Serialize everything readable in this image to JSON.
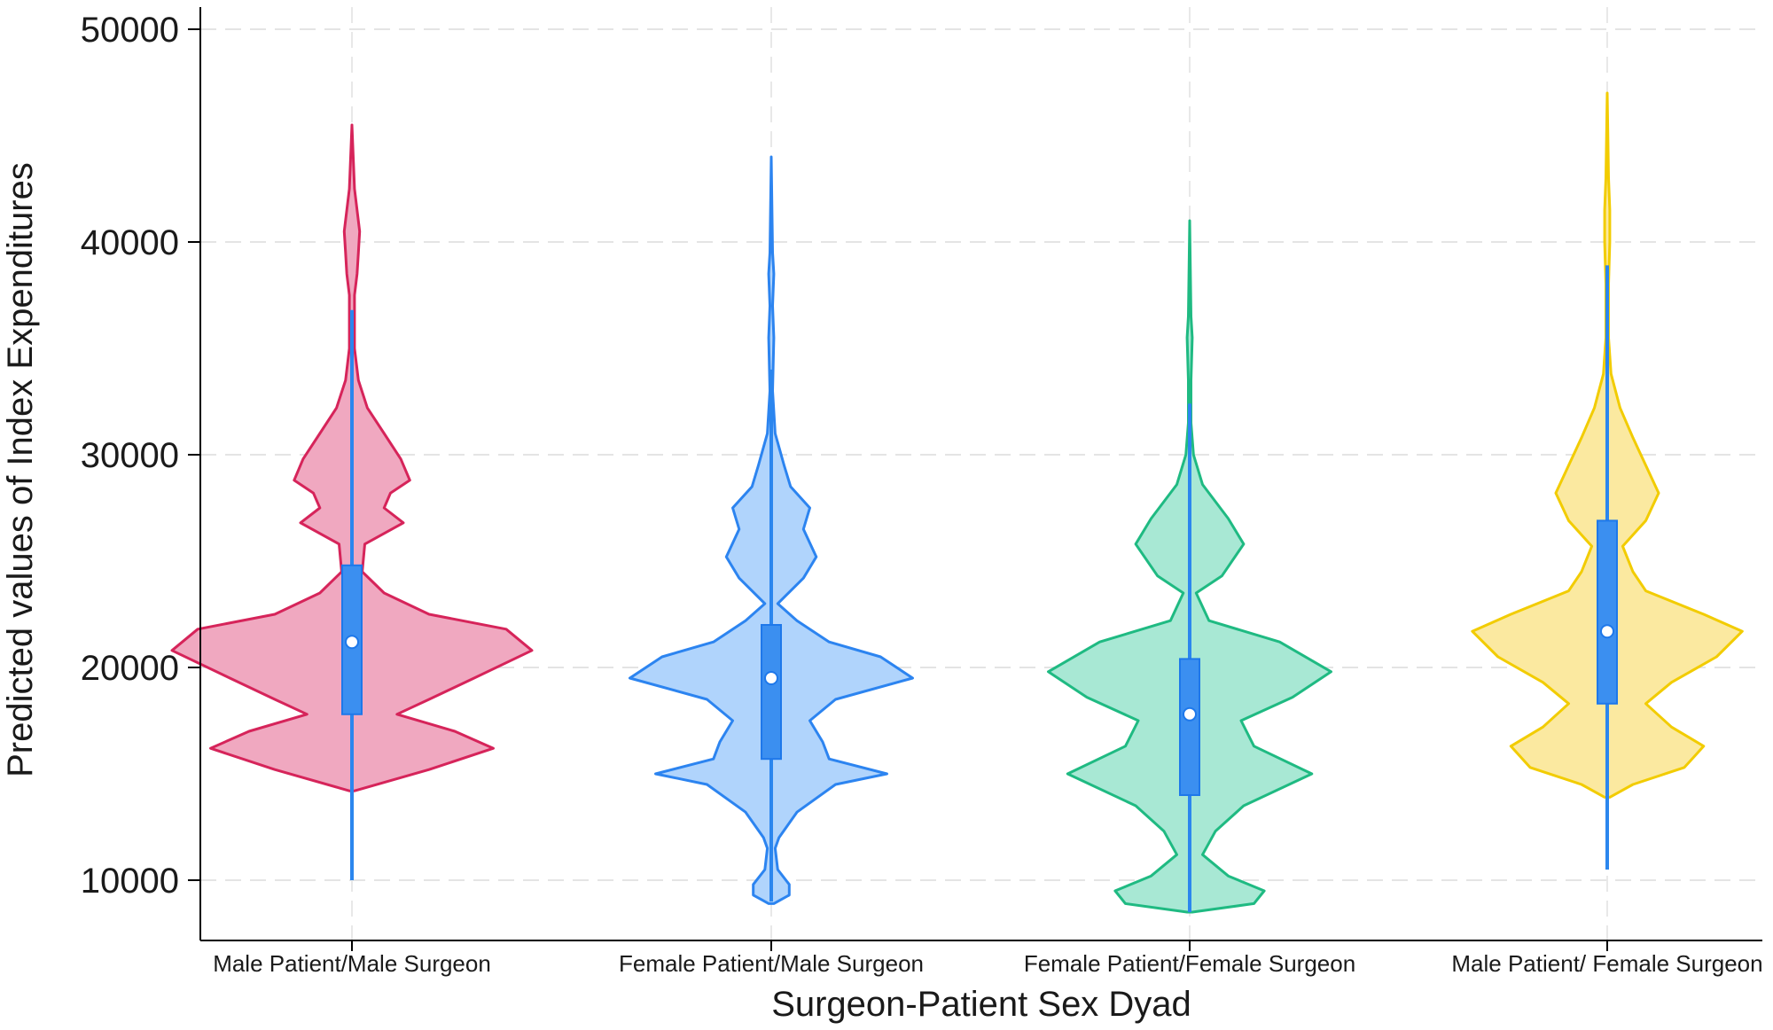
{
  "chart_data": {
    "type": "violin",
    "xlabel": "Surgeon-Patient Sex Dyad",
    "ylabel": "Predicted values of Index Expenditures",
    "ylim": [
      7500,
      51000
    ],
    "yticks": [
      10000,
      20000,
      30000,
      40000,
      50000
    ],
    "grid": true,
    "categories": [
      "Male Patient/Male Surgeon",
      "Female Patient/Male Surgeon",
      "Female Patient/Female Surgeon",
      "Male Patient/ Female Surgeon"
    ],
    "series": [
      {
        "fill": "#f0a8c0",
        "stroke": "#d6245a",
        "min": 10000,
        "q1": 17800,
        "median": 21200,
        "q3": 24800,
        "max": 45500,
        "density": [
          [
            14200,
            0.02
          ],
          [
            15200,
            0.6
          ],
          [
            16200,
            1.1
          ],
          [
            17000,
            0.8
          ],
          [
            17800,
            0.35
          ],
          [
            18500,
            0.6
          ],
          [
            19500,
            0.95
          ],
          [
            20800,
            1.4
          ],
          [
            21800,
            1.2
          ],
          [
            22500,
            0.6
          ],
          [
            23500,
            0.25
          ],
          [
            24500,
            0.08
          ],
          [
            25800,
            0.1
          ],
          [
            26800,
            0.4
          ],
          [
            27500,
            0.25
          ],
          [
            28200,
            0.3
          ],
          [
            28800,
            0.45
          ],
          [
            29800,
            0.38
          ],
          [
            31000,
            0.25
          ],
          [
            32200,
            0.12
          ],
          [
            33500,
            0.05
          ],
          [
            35000,
            0.02
          ],
          [
            37500,
            0.02
          ],
          [
            38500,
            0.04
          ],
          [
            39500,
            0.05
          ],
          [
            40500,
            0.06
          ],
          [
            41500,
            0.04
          ],
          [
            42500,
            0.02
          ],
          [
            45500,
            0.0
          ]
        ]
      },
      {
        "fill": "#b0d4fc",
        "stroke": "#2c84f0",
        "min": 9000,
        "q1": 15700,
        "median": 19500,
        "q3": 22000,
        "max": 44000,
        "density": [
          [
            8900,
            0.02
          ],
          [
            9300,
            0.14
          ],
          [
            9800,
            0.14
          ],
          [
            10500,
            0.05
          ],
          [
            11500,
            0.03
          ],
          [
            12000,
            0.06
          ],
          [
            13200,
            0.2
          ],
          [
            14500,
            0.5
          ],
          [
            15000,
            0.9
          ],
          [
            15700,
            0.45
          ],
          [
            16500,
            0.4
          ],
          [
            17500,
            0.3
          ],
          [
            18500,
            0.5
          ],
          [
            19500,
            1.1
          ],
          [
            20500,
            0.85
          ],
          [
            21200,
            0.45
          ],
          [
            22200,
            0.2
          ],
          [
            23000,
            0.05
          ],
          [
            24200,
            0.25
          ],
          [
            25200,
            0.35
          ],
          [
            26500,
            0.25
          ],
          [
            27500,
            0.3
          ],
          [
            28500,
            0.15
          ],
          [
            29500,
            0.1
          ],
          [
            31000,
            0.03
          ],
          [
            33000,
            0.01
          ],
          [
            35500,
            0.02
          ],
          [
            37000,
            0.01
          ],
          [
            38500,
            0.02
          ],
          [
            39500,
            0.01
          ],
          [
            44000,
            0.0
          ]
        ]
      },
      {
        "fill": "#a8e8d4",
        "stroke": "#1fba82",
        "min": 8500,
        "q1": 14000,
        "median": 17800,
        "q3": 20400,
        "max": 41000,
        "density": [
          [
            8500,
            0.02
          ],
          [
            8900,
            0.5
          ],
          [
            9500,
            0.58
          ],
          [
            10200,
            0.3
          ],
          [
            11200,
            0.1
          ],
          [
            12300,
            0.2
          ],
          [
            13500,
            0.42
          ],
          [
            15000,
            0.95
          ],
          [
            16300,
            0.5
          ],
          [
            17500,
            0.4
          ],
          [
            18600,
            0.8
          ],
          [
            19800,
            1.1
          ],
          [
            21200,
            0.7
          ],
          [
            22200,
            0.15
          ],
          [
            23500,
            0.05
          ],
          [
            24300,
            0.25
          ],
          [
            25800,
            0.42
          ],
          [
            27000,
            0.3
          ],
          [
            28600,
            0.1
          ],
          [
            30000,
            0.03
          ],
          [
            31500,
            0.01
          ],
          [
            33500,
            0.01
          ],
          [
            35500,
            0.02
          ],
          [
            36500,
            0.01
          ],
          [
            41000,
            0.0
          ]
        ]
      },
      {
        "fill": "#fbe9a0",
        "stroke": "#f2cc00",
        "min": 10500,
        "q1": 18300,
        "median": 21700,
        "q3": 26900,
        "max": 47000,
        "density": [
          [
            13900,
            0.02
          ],
          [
            14500,
            0.2
          ],
          [
            15300,
            0.6
          ],
          [
            16300,
            0.75
          ],
          [
            17200,
            0.5
          ],
          [
            18300,
            0.3
          ],
          [
            19300,
            0.5
          ],
          [
            20500,
            0.85
          ],
          [
            21700,
            1.05
          ],
          [
            22500,
            0.75
          ],
          [
            23600,
            0.3
          ],
          [
            24500,
            0.2
          ],
          [
            25700,
            0.12
          ],
          [
            26900,
            0.3
          ],
          [
            28200,
            0.4
          ],
          [
            29500,
            0.3
          ],
          [
            30800,
            0.2
          ],
          [
            32200,
            0.1
          ],
          [
            33800,
            0.03
          ],
          [
            35500,
            0.01
          ],
          [
            38000,
            0.01
          ],
          [
            40000,
            0.02
          ],
          [
            41500,
            0.02
          ],
          [
            43000,
            0.01
          ],
          [
            47000,
            0.0
          ]
        ]
      }
    ],
    "box_fill": "#3b8ff0",
    "box_stroke": "#1e78ea",
    "whisker_color": "#2b86ee"
  }
}
